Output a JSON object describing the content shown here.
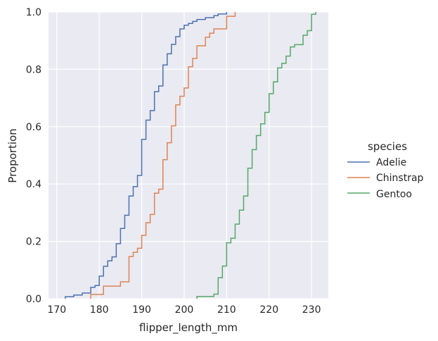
{
  "chart_data": {
    "type": "line",
    "subtype": "ecdf",
    "xlabel": "flipper_length_mm",
    "ylabel": "Proportion",
    "xlim": [
      168.05,
      233.95
    ],
    "ylim": [
      0,
      1
    ],
    "xticks": [
      170,
      180,
      190,
      200,
      210,
      220,
      230
    ],
    "yticks": [
      0.0,
      0.2,
      0.4,
      0.6,
      0.8,
      1.0
    ],
    "xtick_labels": [
      "170",
      "180",
      "190",
      "200",
      "210",
      "220",
      "230"
    ],
    "ytick_labels": [
      "0.0",
      "0.2",
      "0.4",
      "0.6",
      "0.8",
      "1.0"
    ],
    "grid": true,
    "legend": {
      "title": "species",
      "position": "right"
    },
    "series": [
      {
        "name": "Adelie",
        "color": "#4c72b0",
        "x": [
          172,
          174,
          176,
          178,
          179,
          180,
          181,
          182,
          183,
          184,
          185,
          186,
          187,
          188,
          189,
          190,
          191,
          192,
          193,
          194,
          195,
          196,
          197,
          198,
          199,
          200,
          201,
          202,
          203,
          205,
          207,
          208,
          210
        ],
        "y": [
          0.007,
          0.013,
          0.02,
          0.04,
          0.046,
          0.079,
          0.113,
          0.132,
          0.146,
          0.192,
          0.245,
          0.291,
          0.358,
          0.391,
          0.43,
          0.556,
          0.623,
          0.656,
          0.722,
          0.742,
          0.815,
          0.854,
          0.887,
          0.914,
          0.941,
          0.954,
          0.96,
          0.967,
          0.974,
          0.98,
          0.987,
          0.993,
          1.0
        ]
      },
      {
        "name": "Chinstrap",
        "color": "#dd8452",
        "x": [
          178,
          181,
          185,
          187,
          188,
          189,
          190,
          191,
          192,
          193,
          194,
          195,
          196,
          197,
          198,
          199,
          200,
          201,
          202,
          203,
          205,
          206,
          207,
          210,
          212
        ],
        "y": [
          0.015,
          0.044,
          0.059,
          0.147,
          0.162,
          0.176,
          0.221,
          0.265,
          0.294,
          0.368,
          0.382,
          0.485,
          0.544,
          0.603,
          0.676,
          0.706,
          0.735,
          0.809,
          0.838,
          0.882,
          0.912,
          0.926,
          0.941,
          0.985,
          1.0
        ]
      },
      {
        "name": "Gentoo",
        "color": "#55a868",
        "x": [
          203,
          207,
          208,
          209,
          210,
          211,
          212,
          213,
          214,
          215,
          216,
          217,
          218,
          219,
          220,
          221,
          222,
          223,
          224,
          225,
          226,
          228,
          229,
          230,
          231
        ],
        "y": [
          0.008,
          0.016,
          0.073,
          0.114,
          0.195,
          0.211,
          0.26,
          0.309,
          0.358,
          0.455,
          0.52,
          0.569,
          0.61,
          0.65,
          0.715,
          0.756,
          0.805,
          0.821,
          0.846,
          0.878,
          0.886,
          0.919,
          0.935,
          0.992,
          1.0
        ]
      }
    ]
  }
}
